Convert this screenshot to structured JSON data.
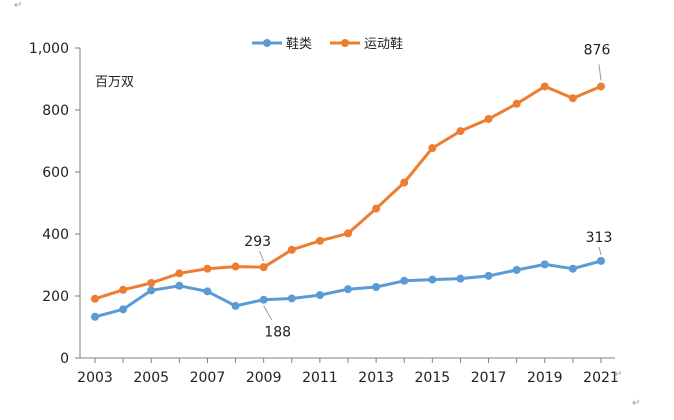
{
  "chart_data": {
    "type": "line",
    "title": "",
    "unit_label": "百万双",
    "x": [
      2003,
      2004,
      2005,
      2006,
      2007,
      2008,
      2009,
      2010,
      2011,
      2012,
      2013,
      2014,
      2015,
      2016,
      2017,
      2018,
      2019,
      2020,
      2021
    ],
    "x_tick_labels": [
      "2003",
      "2005",
      "2007",
      "2009",
      "2011",
      "2013",
      "2015",
      "2017",
      "2019",
      "2021"
    ],
    "ylim": [
      0,
      1000
    ],
    "y_ticks": [
      0,
      200,
      400,
      600,
      800,
      1000
    ],
    "y_tick_labels": [
      "0",
      "200",
      "400",
      "600",
      "800",
      "1,000"
    ],
    "legend_position": "top-center",
    "series": [
      {
        "name": "鞋类",
        "color": "#5b9bd5",
        "values": [
          133,
          157,
          218,
          233,
          215,
          168,
          188,
          192,
          203,
          222,
          229,
          249,
          253,
          256,
          265,
          284,
          302,
          288,
          313
        ],
        "labels": [
          {
            "year": 2009,
            "text": "188"
          },
          {
            "year": 2021,
            "text": "313"
          }
        ]
      },
      {
        "name": "运动鞋",
        "color": "#ed7d31",
        "values": [
          191,
          220,
          242,
          273,
          288,
          295,
          293,
          349,
          378,
          402,
          482,
          566,
          677,
          732,
          771,
          820,
          876,
          838,
          876
        ],
        "labels": [
          {
            "year": 2009,
            "text": "293"
          },
          {
            "year": 2021,
            "text": "876"
          }
        ]
      }
    ]
  }
}
